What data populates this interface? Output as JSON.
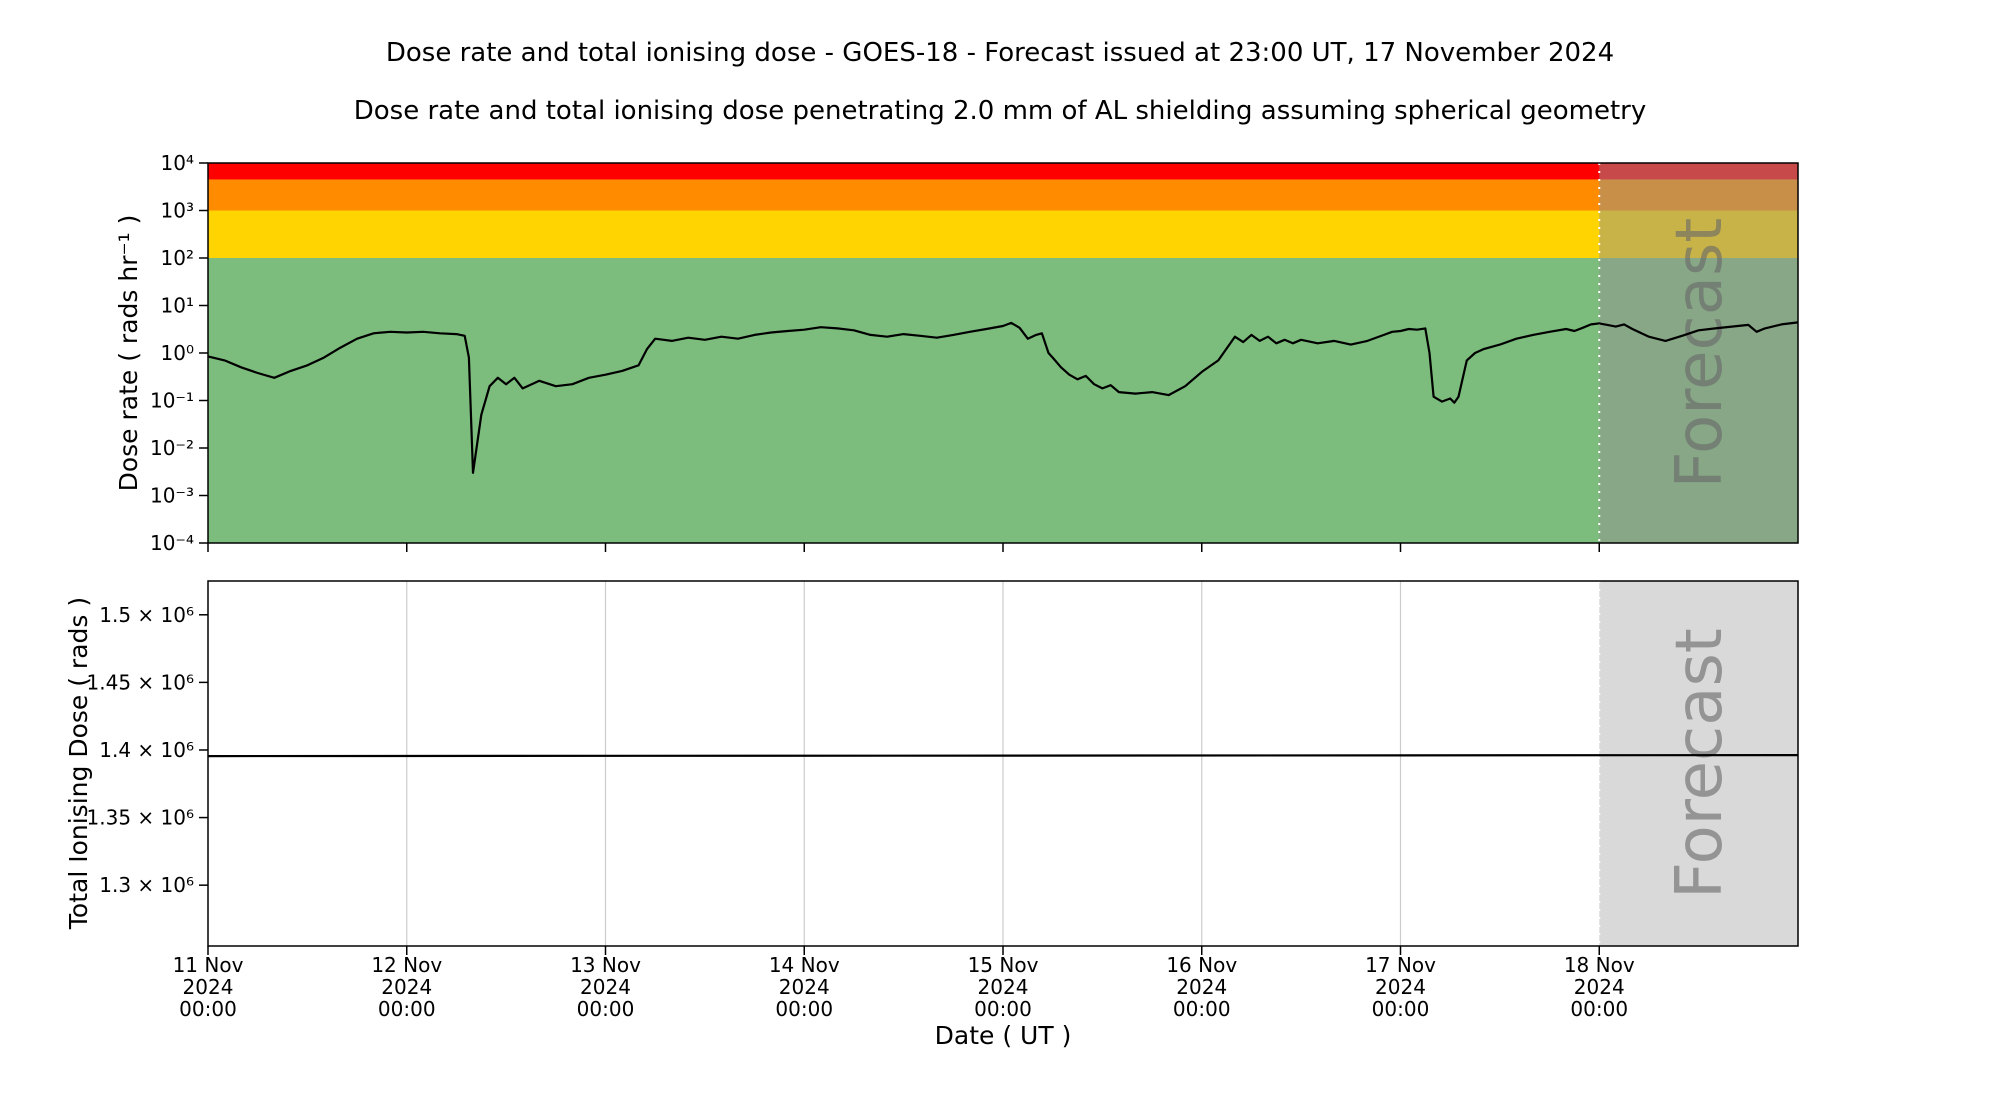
{
  "header": {
    "title": "Dose rate and total ionising dose - GOES-18 - Forecast issued at 23:00 UT, 17 November 2024",
    "subtitle": "Dose rate and total ionising dose penetrating 2.0 mm of AL shielding assuming spherical geometry"
  },
  "colors": {
    "line": "#000000",
    "band_green": "#7cbc7c",
    "band_yellow": "#ffd400",
    "band_orange": "#ff8c00",
    "band_red": "#ff0000",
    "forecast_overlay": "rgba(145,145,145,0.5)",
    "forecast_fill": "#d9d9d9",
    "forecast_boundary": "#ffffff",
    "watermark": "#696969",
    "grid": "#cccccc",
    "axis": "#000000"
  },
  "x_axis": {
    "label": "Date ( UT )",
    "range_hours": [
      0,
      192
    ],
    "start": "11 Nov 2024 00:00",
    "ticks": [
      {
        "hour": 0,
        "lines": [
          "11 Nov",
          "2024",
          "00:00"
        ]
      },
      {
        "hour": 24,
        "lines": [
          "12 Nov",
          "2024",
          "00:00"
        ]
      },
      {
        "hour": 48,
        "lines": [
          "13 Nov",
          "2024",
          "00:00"
        ]
      },
      {
        "hour": 72,
        "lines": [
          "14 Nov",
          "2024",
          "00:00"
        ]
      },
      {
        "hour": 96,
        "lines": [
          "15 Nov",
          "2024",
          "00:00"
        ]
      },
      {
        "hour": 120,
        "lines": [
          "16 Nov",
          "2024",
          "00:00"
        ]
      },
      {
        "hour": 144,
        "lines": [
          "17 Nov",
          "2024",
          "00:00"
        ]
      },
      {
        "hour": 168,
        "lines": [
          "18 Nov",
          "2024",
          "00:00"
        ]
      }
    ],
    "forecast": {
      "start_hour": 168,
      "label": "Forecast"
    }
  },
  "chart_data": [
    {
      "type": "line",
      "name": "dose_rate",
      "ylabel": "Dose rate ( rads hr⁻¹ )",
      "yscale": "log",
      "ylim": [
        0.0001,
        10000.0
      ],
      "yticks": [
        {
          "v": 10000.0,
          "label": "10⁴"
        },
        {
          "v": 1000.0,
          "label": "10³"
        },
        {
          "v": 100.0,
          "label": "10²"
        },
        {
          "v": 10,
          "label": "10¹"
        },
        {
          "v": 1,
          "label": "10⁰"
        },
        {
          "v": 0.1,
          "label": "10⁻¹"
        },
        {
          "v": 0.01,
          "label": "10⁻²"
        },
        {
          "v": 0.001,
          "label": "10⁻³"
        },
        {
          "v": 0.0001,
          "label": "10⁻⁴"
        }
      ],
      "bands": [
        {
          "name": "green",
          "from": 0.0001,
          "to": 100.0,
          "color": "#7cbc7c"
        },
        {
          "name": "yellow",
          "from": 100.0,
          "to": 1000.0,
          "color": "#ffd400"
        },
        {
          "name": "orange",
          "from": 1000.0,
          "to": 4500,
          "color": "#ff8c00"
        },
        {
          "name": "red",
          "from": 4500,
          "to": 10000.0,
          "color": "#ff0000"
        }
      ],
      "series": [
        {
          "name": "dose-rate-observed-and-forecast",
          "color": "#000000",
          "points": [
            [
              0,
              0.85
            ],
            [
              2,
              0.7
            ],
            [
              4,
              0.5
            ],
            [
              6,
              0.38
            ],
            [
              8,
              0.3
            ],
            [
              10,
              0.42
            ],
            [
              12,
              0.55
            ],
            [
              14,
              0.8
            ],
            [
              16,
              1.3
            ],
            [
              18,
              2.0
            ],
            [
              20,
              2.6
            ],
            [
              22,
              2.8
            ],
            [
              24,
              2.7
            ],
            [
              26,
              2.8
            ],
            [
              28,
              2.6
            ],
            [
              30,
              2.5
            ],
            [
              31,
              2.3
            ],
            [
              31.5,
              0.8
            ],
            [
              32,
              0.003
            ],
            [
              33,
              0.05
            ],
            [
              34,
              0.2
            ],
            [
              35,
              0.3
            ],
            [
              36,
              0.22
            ],
            [
              37,
              0.3
            ],
            [
              38,
              0.18
            ],
            [
              40,
              0.26
            ],
            [
              42,
              0.2
            ],
            [
              44,
              0.22
            ],
            [
              46,
              0.3
            ],
            [
              48,
              0.35
            ],
            [
              50,
              0.42
            ],
            [
              52,
              0.55
            ],
            [
              53,
              1.2
            ],
            [
              54,
              2.0
            ],
            [
              56,
              1.8
            ],
            [
              58,
              2.1
            ],
            [
              60,
              1.9
            ],
            [
              62,
              2.2
            ],
            [
              64,
              2.0
            ],
            [
              66,
              2.4
            ],
            [
              68,
              2.7
            ],
            [
              70,
              2.9
            ],
            [
              72,
              3.1
            ],
            [
              74,
              3.5
            ],
            [
              76,
              3.3
            ],
            [
              78,
              3.0
            ],
            [
              80,
              2.4
            ],
            [
              82,
              2.2
            ],
            [
              84,
              2.5
            ],
            [
              86,
              2.3
            ],
            [
              88,
              2.1
            ],
            [
              90,
              2.4
            ],
            [
              92,
              2.8
            ],
            [
              94,
              3.2
            ],
            [
              96,
              3.7
            ],
            [
              97,
              4.3
            ],
            [
              98,
              3.4
            ],
            [
              99,
              2.0
            ],
            [
              100,
              2.4
            ],
            [
              100.7,
              2.6
            ],
            [
              101.5,
              1.0
            ],
            [
              102,
              0.8
            ],
            [
              103,
              0.5
            ],
            [
              104,
              0.35
            ],
            [
              105,
              0.28
            ],
            [
              106,
              0.33
            ],
            [
              107,
              0.22
            ],
            [
              108,
              0.18
            ],
            [
              109,
              0.21
            ],
            [
              110,
              0.15
            ],
            [
              112,
              0.14
            ],
            [
              114,
              0.15
            ],
            [
              116,
              0.13
            ],
            [
              118,
              0.2
            ],
            [
              120,
              0.4
            ],
            [
              122,
              0.7
            ],
            [
              124,
              2.2
            ],
            [
              125,
              1.7
            ],
            [
              126,
              2.4
            ],
            [
              127,
              1.8
            ],
            [
              128,
              2.2
            ],
            [
              129,
              1.6
            ],
            [
              130,
              1.9
            ],
            [
              131,
              1.6
            ],
            [
              132,
              1.9
            ],
            [
              134,
              1.6
            ],
            [
              136,
              1.8
            ],
            [
              138,
              1.5
            ],
            [
              140,
              1.8
            ],
            [
              142,
              2.4
            ],
            [
              143,
              2.8
            ],
            [
              144,
              2.9
            ],
            [
              145,
              3.2
            ],
            [
              146,
              3.1
            ],
            [
              147,
              3.3
            ],
            [
              147.5,
              1.0
            ],
            [
              148,
              0.12
            ],
            [
              149,
              0.095
            ],
            [
              150,
              0.11
            ],
            [
              150.5,
              0.09
            ],
            [
              151,
              0.12
            ],
            [
              152,
              0.7
            ],
            [
              153,
              1.0
            ],
            [
              154,
              1.2
            ],
            [
              156,
              1.5
            ],
            [
              158,
              2.0
            ],
            [
              160,
              2.4
            ],
            [
              162,
              2.8
            ],
            [
              164,
              3.2
            ],
            [
              165,
              2.9
            ],
            [
              166,
              3.4
            ],
            [
              167,
              4.0
            ],
            [
              168,
              4.2
            ],
            [
              169,
              3.9
            ],
            [
              170,
              3.6
            ],
            [
              171,
              4.0
            ],
            [
              172,
              3.2
            ],
            [
              174,
              2.2
            ],
            [
              176,
              1.8
            ],
            [
              178,
              2.3
            ],
            [
              180,
              3.0
            ],
            [
              182,
              3.3
            ],
            [
              184,
              3.6
            ],
            [
              186,
              3.9
            ],
            [
              187,
              2.8
            ],
            [
              188,
              3.3
            ],
            [
              190,
              4.0
            ],
            [
              192,
              4.4
            ]
          ]
        }
      ]
    },
    {
      "type": "line",
      "name": "total_ionising_dose",
      "ylabel": "Total Ionising Dose ( rads )",
      "yscale": "linear",
      "ylim": [
        1255000,
        1525000
      ],
      "grid": "vertical-days",
      "yticks": [
        {
          "v": 1500000,
          "label": "1.5 × 10⁶"
        },
        {
          "v": 1450000,
          "label": "1.45 × 10⁶"
        },
        {
          "v": 1400000,
          "label": "1.4 × 10⁶"
        },
        {
          "v": 1350000,
          "label": "1.35 × 10⁶"
        },
        {
          "v": 1300000,
          "label": "1.3 × 10⁶"
        }
      ],
      "series": [
        {
          "name": "total-ionising-dose",
          "color": "#000000",
          "points": [
            [
              0,
              1395500
            ],
            [
              192,
              1396200
            ]
          ]
        }
      ]
    }
  ]
}
